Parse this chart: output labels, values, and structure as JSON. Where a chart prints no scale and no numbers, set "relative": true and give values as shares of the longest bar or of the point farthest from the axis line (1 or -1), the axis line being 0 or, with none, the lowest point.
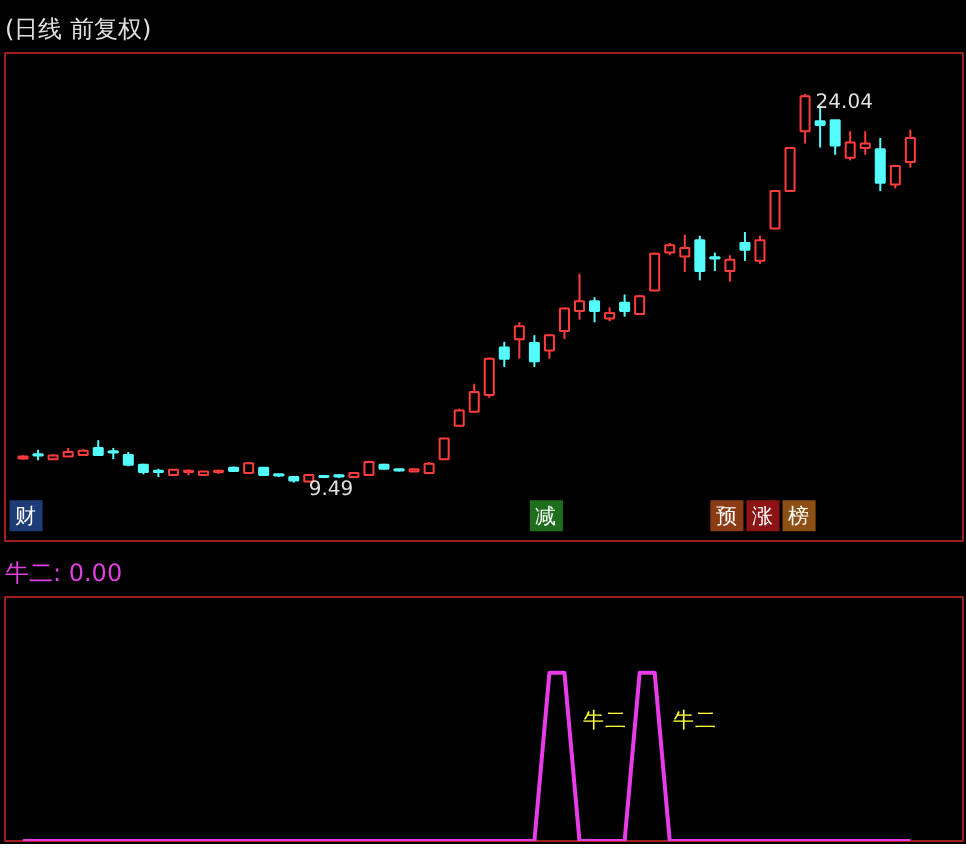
{
  "chart_data": [
    {
      "type": "candlestick",
      "title": "(日线 前复权)",
      "categories": [
        null,
        null,
        null,
        null,
        null,
        null,
        null,
        null,
        null,
        null,
        null,
        null,
        null,
        null,
        null,
        null,
        null,
        null,
        null,
        null,
        null,
        null,
        null,
        null,
        null,
        null,
        null,
        null,
        null,
        null,
        null,
        null,
        null,
        null,
        null,
        null,
        null,
        null,
        null,
        null,
        null,
        null,
        null,
        null,
        null,
        null,
        null,
        null,
        null,
        null,
        null,
        null,
        null,
        null,
        null,
        null,
        null,
        null,
        null,
        null
      ],
      "ohlc": [
        [
          10.39,
          10.51,
          10.35,
          10.47
        ],
        [
          10.53,
          10.72,
          10.33,
          10.51
        ],
        [
          10.37,
          10.55,
          10.35,
          10.51
        ],
        [
          10.47,
          10.79,
          10.45,
          10.64
        ],
        [
          10.53,
          10.74,
          10.51,
          10.68
        ],
        [
          10.79,
          11.08,
          10.51,
          10.53
        ],
        [
          10.64,
          10.79,
          10.37,
          10.62
        ],
        [
          10.53,
          10.64,
          10.1,
          10.16
        ],
        [
          10.16,
          10.2,
          9.8,
          9.89
        ],
        [
          9.91,
          10.01,
          9.7,
          9.89
        ],
        [
          9.78,
          9.99,
          9.76,
          9.97
        ],
        [
          9.89,
          9.99,
          9.76,
          9.91
        ],
        [
          9.78,
          9.93,
          9.76,
          9.91
        ],
        [
          9.89,
          9.97,
          9.82,
          9.91
        ],
        [
          10.05,
          10.1,
          9.91,
          9.93
        ],
        [
          9.85,
          10.24,
          9.82,
          10.22
        ],
        [
          10.05,
          10.07,
          9.76,
          9.78
        ],
        [
          9.78,
          9.82,
          9.7,
          9.76
        ],
        [
          9.7,
          9.74,
          9.49,
          9.57
        ],
        [
          9.53,
          9.8,
          9.51,
          9.78
        ],
        [
          9.72,
          9.78,
          9.66,
          9.7
        ],
        [
          9.74,
          9.8,
          9.66,
          9.72
        ],
        [
          9.7,
          9.89,
          9.68,
          9.85
        ],
        [
          9.78,
          10.31,
          9.76,
          10.26
        ],
        [
          10.16,
          10.2,
          9.99,
          10.01
        ],
        [
          9.97,
          10.01,
          9.91,
          9.95
        ],
        [
          9.91,
          10.01,
          9.89,
          9.99
        ],
        [
          9.85,
          10.26,
          9.82,
          10.2
        ],
        [
          10.37,
          11.16,
          10.35,
          11.14
        ],
        [
          11.62,
          12.26,
          11.6,
          12.19
        ],
        [
          12.14,
          13.19,
          12.12,
          12.88
        ],
        [
          12.77,
          14.17,
          12.67,
          14.13
        ],
        [
          14.55,
          14.76,
          13.82,
          14.13
        ],
        [
          14.86,
          15.49,
          14.13,
          15.34
        ],
        [
          14.72,
          15.01,
          13.82,
          14.03
        ],
        [
          14.44,
          15.05,
          14.13,
          15.01
        ],
        [
          15.17,
          16.05,
          14.86,
          16.01
        ],
        [
          15.91,
          17.31,
          15.59,
          16.28
        ],
        [
          16.28,
          16.43,
          15.49,
          15.91
        ],
        [
          15.63,
          16.05,
          15.53,
          15.84
        ],
        [
          16.22,
          16.53,
          15.7,
          15.91
        ],
        [
          15.8,
          16.51,
          15.78,
          16.47
        ],
        [
          16.68,
          18.1,
          16.66,
          18.06
        ],
        [
          18.1,
          18.46,
          18.0,
          18.37
        ],
        [
          17.95,
          18.77,
          17.37,
          18.27
        ],
        [
          18.56,
          18.73,
          17.06,
          17.41
        ],
        [
          17.9,
          18.1,
          17.41,
          17.88
        ],
        [
          17.41,
          18.0,
          17.01,
          17.83
        ],
        [
          18.46,
          18.87,
          17.79,
          18.21
        ],
        [
          17.79,
          18.73,
          17.68,
          18.56
        ],
        [
          19.0,
          20.44,
          18.98,
          20.4
        ],
        [
          20.4,
          22.05,
          20.38,
          22.01
        ],
        [
          22.64,
          24.04,
          22.18,
          23.95
        ],
        [
          23.01,
          23.58,
          22.03,
          22.87
        ],
        [
          23.05,
          23.05,
          21.76,
          22.11
        ],
        [
          21.65,
          22.64,
          21.55,
          22.22
        ],
        [
          22.01,
          22.64,
          21.76,
          22.18
        ],
        [
          21.97,
          22.39,
          20.4,
          20.71
        ],
        [
          20.65,
          21.38,
          20.5,
          21.34
        ],
        [
          21.49,
          22.7,
          21.28,
          22.39
        ]
      ],
      "annotations": [
        "24.04",
        "9.49",
        "财",
        "减",
        "预",
        "涨",
        "榜"
      ]
    },
    {
      "type": "line",
      "title": "牛二: 0.00",
      "relative": true,
      "categories": [
        null,
        null,
        null,
        null,
        null,
        null,
        null,
        null,
        null,
        null,
        null,
        null,
        null,
        null,
        null,
        null,
        null,
        null,
        null,
        null,
        null,
        null,
        null,
        null,
        null,
        null,
        null,
        null,
        null,
        null,
        null,
        null,
        null,
        null,
        null,
        null,
        null,
        null,
        null,
        null,
        null,
        null,
        null,
        null,
        null,
        null,
        null,
        null,
        null,
        null,
        null,
        null,
        null,
        null,
        null,
        null,
        null,
        null,
        null,
        null
      ],
      "series": [
        {
          "color": "#e83ce8",
          "values": [
            0,
            0,
            0,
            0,
            0,
            0,
            0,
            0,
            0,
            0,
            0,
            0,
            0,
            0,
            0,
            0,
            0,
            0,
            0,
            0,
            0,
            0,
            0,
            0,
            0,
            0,
            0,
            0,
            0,
            0,
            0,
            0,
            0,
            0,
            0,
            1,
            1,
            0,
            0,
            0,
            0,
            1,
            1,
            0,
            0,
            0,
            0,
            0,
            0,
            0,
            0,
            0,
            0,
            0,
            0,
            0,
            0,
            0,
            0,
            0
          ]
        }
      ],
      "annotations": [
        "牛二",
        "牛二"
      ]
    }
  ]
}
